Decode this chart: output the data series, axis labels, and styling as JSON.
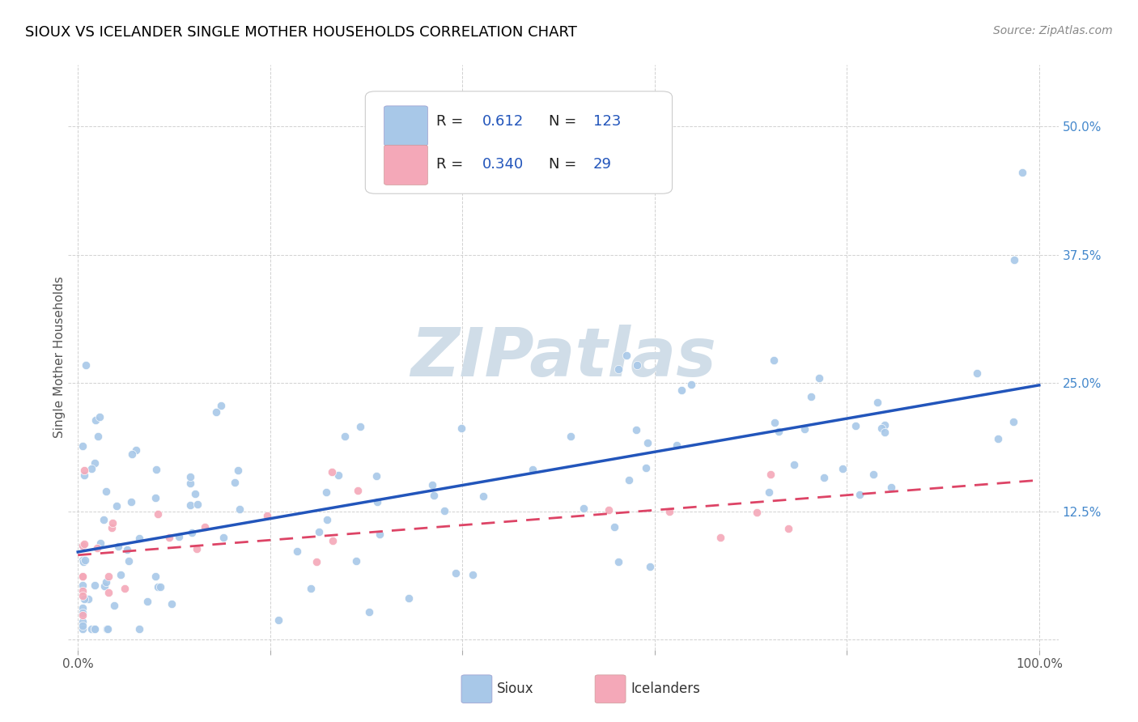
{
  "title": "SIOUX VS ICELANDER SINGLE MOTHER HOUSEHOLDS CORRELATION CHART",
  "source": "Source: ZipAtlas.com",
  "ylabel": "Single Mother Households",
  "sioux_R": 0.612,
  "sioux_N": 123,
  "icelander_R": 0.34,
  "icelander_N": 29,
  "sioux_color": "#a8c8e8",
  "icelander_color": "#f4a8b8",
  "sioux_line_color": "#2255bb",
  "icelander_line_color": "#dd4466",
  "watermark_text": "ZIPatlas",
  "watermark_color": "#d0dde8",
  "xlim": [
    -0.01,
    1.02
  ],
  "ylim": [
    -0.01,
    0.56
  ],
  "x_ticks": [
    0.0,
    0.2,
    0.4,
    0.6,
    0.8,
    1.0
  ],
  "x_tick_labels": [
    "0.0%",
    "",
    "",
    "",
    "",
    "100.0%"
  ],
  "y_ticks": [
    0.0,
    0.125,
    0.25,
    0.375,
    0.5
  ],
  "y_tick_labels": [
    "",
    "12.5%",
    "25.0%",
    "37.5%",
    "50.0%"
  ],
  "grid_color": "#cccccc",
  "grid_style": "--",
  "title_fontsize": 13,
  "tick_fontsize": 11,
  "legend_fontsize": 13
}
